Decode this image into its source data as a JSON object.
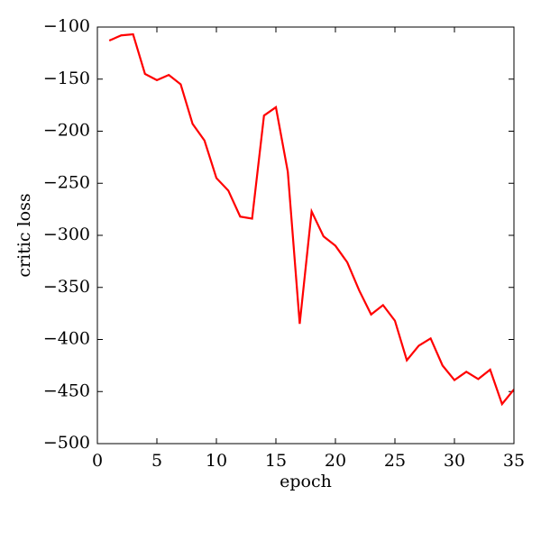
{
  "chart_data": {
    "type": "line",
    "xlabel": "epoch",
    "ylabel": "critic loss",
    "x": [
      1,
      2,
      3,
      4,
      5,
      6,
      7,
      8,
      9,
      10,
      11,
      12,
      13,
      14,
      15,
      16,
      17,
      18,
      19,
      20,
      21,
      22,
      23,
      24,
      25,
      26,
      27,
      28,
      29,
      30,
      31,
      32,
      33,
      34,
      35
    ],
    "series": [
      {
        "color": "#ff0000",
        "values": [
          -113,
          -108,
          -107,
          -145,
          -151,
          -146,
          -155,
          -193,
          -209,
          -245,
          -257,
          -282,
          -284,
          -185,
          -177,
          -239,
          -385,
          -277,
          -301,
          -310,
          -326,
          -353,
          -376,
          -367,
          -382,
          -420,
          -406,
          -399,
          -425,
          -439,
          -431,
          -438,
          -429,
          -462,
          -448
        ]
      }
    ],
    "xlim": [
      0,
      35
    ],
    "xticks": [
      0,
      5,
      10,
      15,
      20,
      25,
      30,
      35
    ],
    "ylim": [
      -500,
      -100
    ],
    "yticks": [
      {
        "value": -500,
        "label": "−500"
      },
      {
        "value": -450,
        "label": "−450"
      },
      {
        "value": -400,
        "label": "−400"
      },
      {
        "value": -350,
        "label": "−350"
      },
      {
        "value": -300,
        "label": "−300"
      },
      {
        "value": -250,
        "label": "−250"
      },
      {
        "value": -200,
        "label": "−200"
      },
      {
        "value": -150,
        "label": "−150"
      },
      {
        "value": -100,
        "label": "−100"
      }
    ],
    "grid": false
  }
}
